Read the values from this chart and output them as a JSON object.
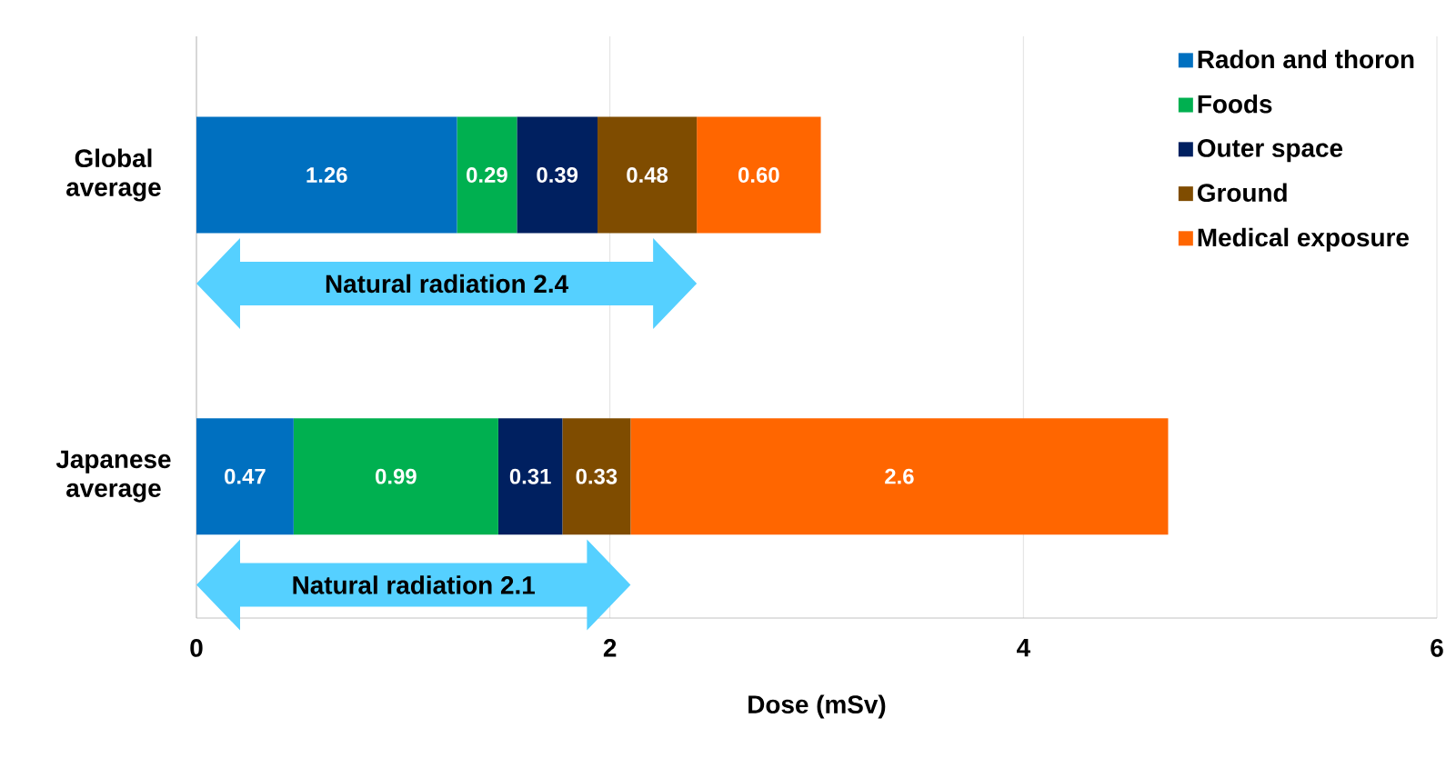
{
  "chart_data": {
    "type": "bar",
    "orientation": "horizontal",
    "stacked": true,
    "xlabel": "Dose (mSv)",
    "categories": [
      "Global average",
      "Japanese average"
    ],
    "series": [
      {
        "name": "Radon and thoron",
        "color": "#0070c0",
        "values": [
          1.26,
          0.47
        ],
        "value_labels": [
          "1.26",
          "0.47"
        ]
      },
      {
        "name": "Foods",
        "color": "#00b050",
        "values": [
          0.29,
          0.99
        ],
        "value_labels": [
          "0.29",
          "0.99"
        ]
      },
      {
        "name": "Outer space",
        "color": "#002060",
        "values": [
          0.39,
          0.31
        ],
        "value_labels": [
          "0.39",
          "0.31"
        ]
      },
      {
        "name": "Ground",
        "color": "#7f4c00",
        "values": [
          0.48,
          0.33
        ],
        "value_labels": [
          "0.48",
          "0.33"
        ]
      },
      {
        "name": "Medical exposure",
        "color": "#ff6600",
        "values": [
          0.6,
          2.6
        ],
        "value_labels": [
          "0.60",
          "2.6"
        ]
      }
    ],
    "xlim": [
      0,
      6
    ],
    "xticks": [
      0,
      2,
      4,
      6
    ],
    "grid": "x",
    "legend": "top right",
    "annotations": [
      "Natural radiation 2.4",
      "Natural radiation 2.1"
    ]
  }
}
